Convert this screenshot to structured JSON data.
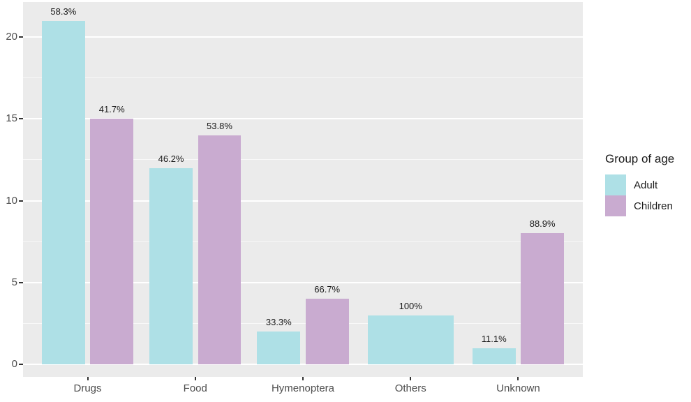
{
  "chart_data": {
    "type": "bar",
    "title": "",
    "legend_title": "Group of age",
    "legend_position": "right",
    "categories": [
      "Drugs",
      "Food",
      "Hymenoptera",
      "Others",
      "Unknown"
    ],
    "series": [
      {
        "name": "Adult",
        "color": "#aee0e6",
        "values": [
          21,
          12,
          2,
          3,
          1
        ],
        "bar_labels": [
          "58.3%",
          "46.2%",
          "33.3%",
          "100%",
          "11.1%"
        ]
      },
      {
        "name": "Children",
        "color": "#c9abd0",
        "values": [
          15,
          14,
          4,
          null,
          8
        ],
        "bar_labels": [
          "41.7%",
          "53.8%",
          "66.7%",
          null,
          "88.9%"
        ]
      }
    ],
    "xlabel": "",
    "ylabel": "",
    "y_ticks": [
      0,
      5,
      10,
      15,
      20
    ],
    "ylim": [
      0,
      22.1
    ],
    "grid": {
      "major": "on",
      "minor": "on",
      "major_color": "#ffffff",
      "minor_color": "#ffffff",
      "panel_bg": "#ebebeb"
    },
    "colors": {
      "axis_text": "#4d4d4d",
      "bar_label_text": "#1a1a1a",
      "tick_mark": "#333333",
      "background": "#ffffff"
    }
  }
}
